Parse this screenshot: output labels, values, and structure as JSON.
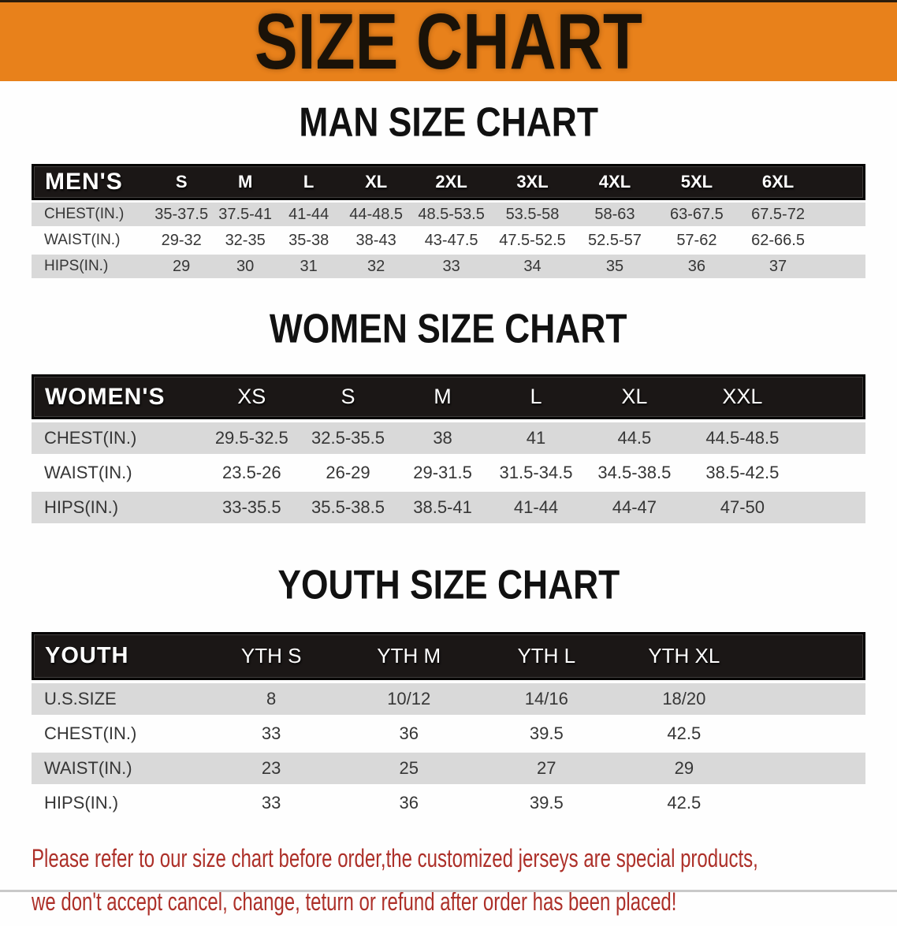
{
  "banner": {
    "title": "SIZE CHART"
  },
  "sections": [
    {
      "id": "men",
      "heading": "MAN SIZE CHART",
      "table": {
        "header_label": "MEN'S",
        "columns": [
          "S",
          "M",
          "L",
          "XL",
          "2XL",
          "3XL",
          "4XL",
          "5XL",
          "6XL"
        ],
        "rows": [
          {
            "label": "CHEST(IN.)",
            "shaded": true,
            "values": [
              "35-37.5",
              "37.5-41",
              "41-44",
              "44-48.5",
              "48.5-53.5",
              "53.5-58",
              "58-63",
              "63-67.5",
              "67.5-72"
            ]
          },
          {
            "label": "WAIST(IN.)",
            "shaded": false,
            "values": [
              "29-32",
              "32-35",
              "35-38",
              "38-43",
              "43-47.5",
              "47.5-52.5",
              "52.5-57",
              "57-62",
              "62-66.5"
            ]
          },
          {
            "label": "HIPS(IN.)",
            "shaded": true,
            "values": [
              "29",
              "30",
              "31",
              "32",
              "33",
              "34",
              "35",
              "36",
              "37"
            ]
          }
        ]
      }
    },
    {
      "id": "women",
      "heading": "WOMEN SIZE CHART",
      "table": {
        "header_label": "WOMEN'S",
        "columns": [
          "XS",
          "S",
          "M",
          "L",
          "XL",
          "XXL"
        ],
        "rows": [
          {
            "label": "CHEST(IN.)",
            "shaded": true,
            "values": [
              "29.5-32.5",
              "32.5-35.5",
              "38",
              "41",
              "44.5",
              "44.5-48.5"
            ]
          },
          {
            "label": "WAIST(IN.)",
            "shaded": false,
            "values": [
              "23.5-26",
              "26-29",
              "29-31.5",
              "31.5-34.5",
              "34.5-38.5",
              "38.5-42.5"
            ]
          },
          {
            "label": "HIPS(IN.)",
            "shaded": true,
            "values": [
              "33-35.5",
              "35.5-38.5",
              "38.5-41",
              "41-44",
              "44-47",
              "47-50"
            ]
          }
        ]
      }
    },
    {
      "id": "youth",
      "heading": "YOUTH SIZE CHART",
      "table": {
        "header_label": "YOUTH",
        "columns": [
          "YTH S",
          "YTH M",
          "YTH L",
          "YTH XL"
        ],
        "rows": [
          {
            "label": "U.S.SIZE",
            "shaded": true,
            "values": [
              "8",
              "10/12",
              "14/16",
              "18/20"
            ]
          },
          {
            "label": "CHEST(IN.)",
            "shaded": false,
            "values": [
              "33",
              "36",
              "39.5",
              "42.5"
            ]
          },
          {
            "label": "WAIST(IN.)",
            "shaded": true,
            "values": [
              "23",
              "25",
              "27",
              "29"
            ]
          },
          {
            "label": "HIPS(IN.)",
            "shaded": false,
            "values": [
              "33",
              "36",
              "39.5",
              "42.5"
            ]
          }
        ]
      }
    }
  ],
  "disclaimer": {
    "lines": [
      "Please refer to our size chart before order,the customized jerseys are special products,",
      "we don't accept cancel, change, teturn or refund after order has been placed!"
    ]
  },
  "colors": {
    "banner_bg": "#E8811B",
    "banner_text": "#1A1208",
    "bar_bg": "#1B1716",
    "bar_text": "#FFFFFF",
    "row_shade": "#D9D9D9",
    "body_text": "#363636",
    "heading_text": "#111111",
    "disclaimer_text": "#AD3029"
  }
}
